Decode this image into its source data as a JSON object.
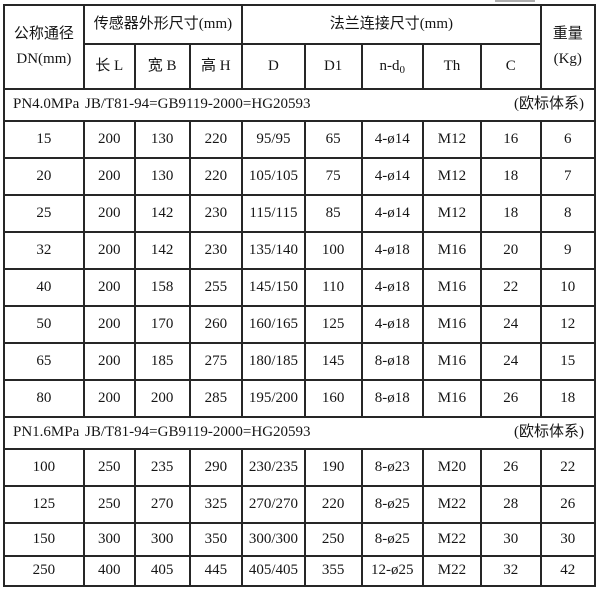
{
  "page": {
    "background": "#ffffff",
    "border_color": "#262626"
  },
  "table": {
    "header": {
      "dn_line1": "公称通径",
      "dn_line2": "DN(mm)",
      "sensor_group": "传感器外形尺寸(mm)",
      "flange_group": "法兰连接尺寸(mm)",
      "weight_line1": "重量",
      "weight_line2": "(Kg)",
      "len": "长 L",
      "width": "宽 B",
      "height": "高 H",
      "d": "D",
      "d1": "D1",
      "nd0_base": "n-d",
      "nd0_sub": "0",
      "th": "Th",
      "c": "C"
    },
    "sections": [
      {
        "pressure": "PN4.0MPa",
        "standard": "JB/T81-94=GB9119-2000=HG20593",
        "note": "(欧标体系)",
        "rows": [
          [
            "15",
            "200",
            "130",
            "220",
            "95/95",
            "65",
            "4-ø14",
            "M12",
            "16",
            "6"
          ],
          [
            "20",
            "200",
            "130",
            "220",
            "105/105",
            "75",
            "4-ø14",
            "M12",
            "18",
            "7"
          ],
          [
            "25",
            "200",
            "142",
            "230",
            "115/115",
            "85",
            "4-ø14",
            "M12",
            "18",
            "8"
          ],
          [
            "32",
            "200",
            "142",
            "230",
            "135/140",
            "100",
            "4-ø18",
            "M16",
            "20",
            "9"
          ],
          [
            "40",
            "200",
            "158",
            "255",
            "145/150",
            "110",
            "4-ø18",
            "M16",
            "22",
            "10"
          ],
          [
            "50",
            "200",
            "170",
            "260",
            "160/165",
            "125",
            "4-ø18",
            "M16",
            "24",
            "12"
          ],
          [
            "65",
            "200",
            "185",
            "275",
            "180/185",
            "145",
            "8-ø18",
            "M16",
            "24",
            "15"
          ],
          [
            "80",
            "200",
            "200",
            "285",
            "195/200",
            "160",
            "8-ø18",
            "M16",
            "26",
            "18"
          ]
        ]
      },
      {
        "pressure": "PN1.6MPa",
        "standard": "JB/T81-94=GB9119-2000=HG20593",
        "note": "(欧标体系)",
        "rows": [
          [
            "100",
            "250",
            "235",
            "290",
            "230/235",
            "190",
            "8-ø23",
            "M20",
            "26",
            "22"
          ],
          [
            "125",
            "250",
            "270",
            "325",
            "270/270",
            "220",
            "8-ø25",
            "M22",
            "28",
            "26"
          ],
          [
            "150",
            "300",
            "300",
            "350",
            "300/300",
            "250",
            "8-ø25",
            "M22",
            "30",
            "30"
          ],
          [
            "250",
            "400",
            "405",
            "445",
            "405/405",
            "355",
            "12-ø25",
            "M22",
            "32",
            "42"
          ]
        ]
      }
    ]
  }
}
